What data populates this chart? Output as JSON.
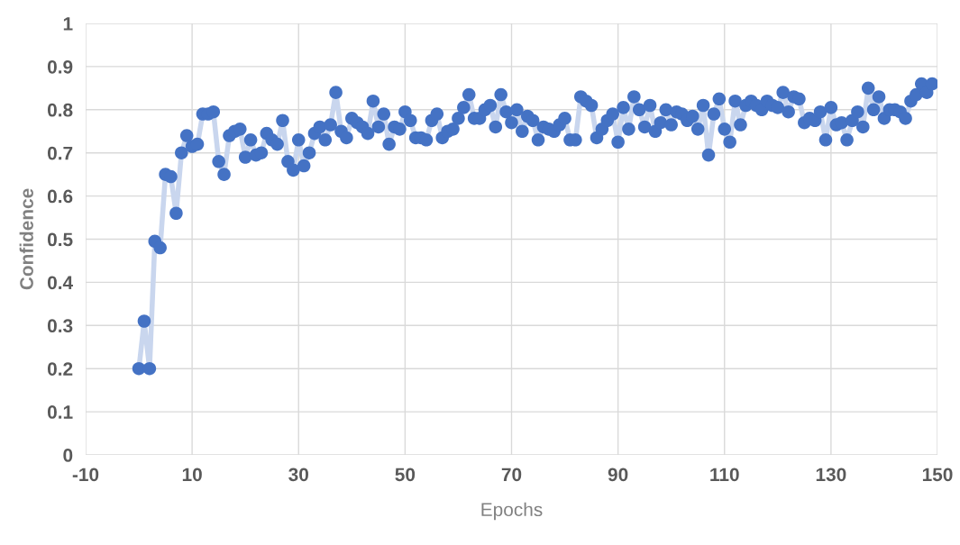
{
  "chart_data": {
    "type": "scatter",
    "xlabel": "Epochs",
    "ylabel": "Confidence",
    "xlim": [
      -10,
      150
    ],
    "xticks": [
      -10,
      10,
      30,
      50,
      70,
      90,
      110,
      130,
      150
    ],
    "ylim": [
      0,
      1
    ],
    "yticks": [
      0,
      0.1,
      0.2,
      0.3,
      0.4,
      0.5,
      0.6,
      0.7,
      0.8,
      0.9,
      1
    ],
    "grid": true,
    "legend": false,
    "x": [
      0,
      1,
      2,
      3,
      4,
      5,
      6,
      7,
      8,
      9,
      10,
      11,
      12,
      13,
      14,
      15,
      16,
      17,
      18,
      19,
      20,
      21,
      22,
      23,
      24,
      25,
      26,
      27,
      28,
      29,
      30,
      31,
      32,
      33,
      34,
      35,
      36,
      37,
      38,
      39,
      40,
      41,
      42,
      43,
      44,
      45,
      46,
      47,
      48,
      49,
      50,
      51,
      52,
      53,
      54,
      55,
      56,
      57,
      58,
      59,
      60,
      61,
      62,
      63,
      64,
      65,
      66,
      67,
      68,
      69,
      70,
      71,
      72,
      73,
      74,
      75,
      76,
      77,
      78,
      79,
      80,
      81,
      82,
      83,
      84,
      85,
      86,
      87,
      88,
      89,
      90,
      91,
      92,
      93,
      94,
      95,
      96,
      97,
      98,
      99,
      100,
      101,
      102,
      103,
      104,
      105,
      106,
      107,
      108,
      109,
      110,
      111,
      112,
      113,
      114,
      115,
      116,
      117,
      118,
      119,
      120,
      121,
      122,
      123,
      124,
      125,
      126,
      127,
      128,
      129,
      130,
      131,
      132,
      133,
      134,
      135,
      136,
      137,
      138,
      139,
      140,
      141,
      142,
      143,
      144,
      145,
      146,
      147,
      148,
      149
    ],
    "series": [
      {
        "type": "line",
        "color": "#c9d6ee",
        "values": [
          0.2,
          0.31,
          0.2,
          0.495,
          0.48,
          0.65,
          0.645,
          0.56,
          0.7,
          0.74,
          0.715,
          0.72,
          0.79,
          0.79,
          0.795,
          0.68,
          0.65,
          0.74,
          0.75,
          0.755,
          0.69,
          0.73,
          0.695,
          0.7,
          0.745,
          0.73,
          0.72,
          0.775,
          0.68,
          0.66,
          0.73,
          0.67,
          0.7,
          0.745,
          0.76,
          0.73,
          0.765,
          0.84,
          0.75,
          0.735,
          0.78,
          0.77,
          0.76,
          0.745,
          0.82,
          0.76,
          0.79,
          0.72,
          0.76,
          0.755,
          0.795,
          0.775,
          0.735,
          0.735,
          0.73,
          0.775,
          0.79,
          0.735,
          0.75,
          0.755,
          0.78,
          0.805,
          0.835,
          0.78,
          0.78,
          0.8,
          0.81,
          0.76,
          0.835,
          0.795,
          0.77,
          0.8,
          0.75,
          0.785,
          0.775,
          0.73,
          0.76,
          0.755,
          0.75,
          0.765,
          0.78,
          0.73,
          0.73,
          0.83,
          0.82,
          0.81,
          0.735,
          0.755,
          0.775,
          0.79,
          0.725,
          0.805,
          0.755,
          0.83,
          0.8,
          0.76,
          0.81,
          0.75,
          0.77,
          0.8,
          0.765,
          0.795,
          0.79,
          0.775,
          0.785,
          0.755,
          0.81,
          0.695,
          0.79,
          0.825,
          0.755,
          0.725,
          0.82,
          0.765,
          0.81,
          0.82,
          0.81,
          0.8,
          0.82,
          0.81,
          0.805,
          0.84,
          0.795,
          0.83,
          0.825,
          0.77,
          0.78,
          0.775,
          0.795,
          0.73,
          0.805,
          0.765,
          0.77,
          0.73,
          0.775,
          0.795,
          0.76,
          0.85,
          0.8,
          0.83,
          0.78,
          0.8,
          0.8,
          0.795,
          0.78,
          0.82,
          0.835,
          0.86,
          0.84,
          0.86
        ]
      },
      {
        "marker": "circle",
        "color": "#4472c4",
        "values": [
          0.2,
          0.31,
          0.2,
          0.495,
          0.48,
          0.65,
          0.645,
          0.56,
          0.7,
          0.74,
          0.715,
          0.72,
          0.79,
          0.79,
          0.795,
          0.68,
          0.65,
          0.74,
          0.75,
          0.755,
          0.69,
          0.73,
          0.695,
          0.7,
          0.745,
          0.73,
          0.72,
          0.775,
          0.68,
          0.66,
          0.73,
          0.67,
          0.7,
          0.745,
          0.76,
          0.73,
          0.765,
          0.84,
          0.75,
          0.735,
          0.78,
          0.77,
          0.76,
          0.745,
          0.82,
          0.76,
          0.79,
          0.72,
          0.76,
          0.755,
          0.795,
          0.775,
          0.735,
          0.735,
          0.73,
          0.775,
          0.79,
          0.735,
          0.75,
          0.755,
          0.78,
          0.805,
          0.835,
          0.78,
          0.78,
          0.8,
          0.81,
          0.76,
          0.835,
          0.795,
          0.77,
          0.8,
          0.75,
          0.785,
          0.775,
          0.73,
          0.76,
          0.755,
          0.75,
          0.765,
          0.78,
          0.73,
          0.73,
          0.83,
          0.82,
          0.81,
          0.735,
          0.755,
          0.775,
          0.79,
          0.725,
          0.805,
          0.755,
          0.83,
          0.8,
          0.76,
          0.81,
          0.75,
          0.77,
          0.8,
          0.765,
          0.795,
          0.79,
          0.775,
          0.785,
          0.755,
          0.81,
          0.695,
          0.79,
          0.825,
          0.755,
          0.725,
          0.82,
          0.765,
          0.81,
          0.82,
          0.81,
          0.8,
          0.82,
          0.81,
          0.805,
          0.84,
          0.795,
          0.83,
          0.825,
          0.77,
          0.78,
          0.775,
          0.795,
          0.73,
          0.805,
          0.765,
          0.77,
          0.73,
          0.775,
          0.795,
          0.76,
          0.85,
          0.8,
          0.83,
          0.78,
          0.8,
          0.8,
          0.795,
          0.78,
          0.82,
          0.835,
          0.86,
          0.84,
          0.86
        ]
      }
    ]
  }
}
